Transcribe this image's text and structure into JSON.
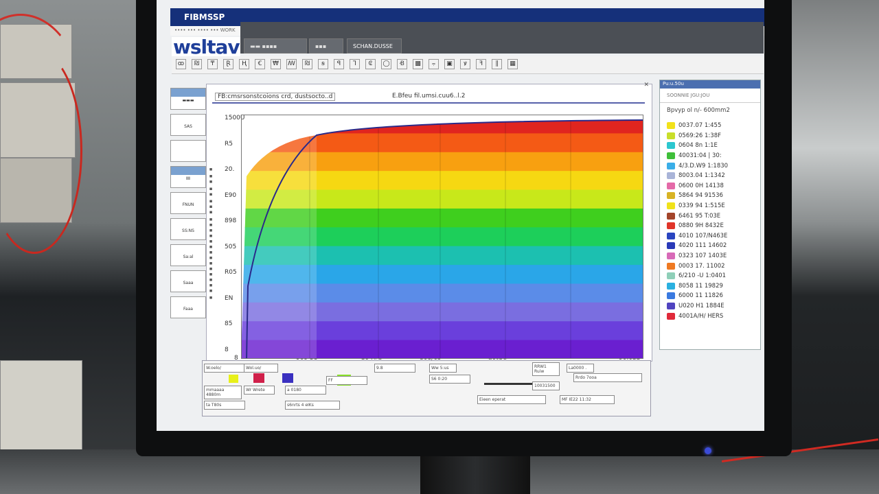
{
  "window": {
    "title": "FIBMSSP",
    "menu": "•••• ••• •••• ••• WORK",
    "logo": "wsltav"
  },
  "header_tabs": [
    "▬▬ ▪▪▪▪",
    "▪▪▪",
    "SCHAN.DUSSE"
  ],
  "toolbar_icons": [
    "ꝏ",
    "₪",
    "₸",
    "Ɽ",
    "Ⱨ",
    "Ꞓ",
    "₩",
    "ꟿ",
    "₪",
    "ꞩ",
    "ꟼ",
    "⅂",
    "₢",
    "◯",
    "Ꞗ",
    "▩",
    "⩦",
    "▣",
    "ꝟ",
    "ꟻ",
    "∥",
    "▦"
  ],
  "left_panel": [
    "▬▬▬",
    "SAS",
    "",
    "ⅡⅡ",
    "FNUN",
    "SS:NS",
    "Sa:al",
    "Saaa",
    "Faaa"
  ],
  "chart": {
    "header_left": "FB:cmsrsonstcoions crd, dustsocto..d",
    "header_right": "E.Bfeu fil.umsi.cuu6..l.2",
    "y_ticks": [
      "1500U",
      "R5",
      "20.",
      "E90",
      "898",
      "505",
      "R05",
      "EN",
      "85",
      "8"
    ],
    "x_ticks": [
      "8",
      "909 58",
      "S94#b",
      "808/65",
      "a0tUe",
      "90.0SS"
    ],
    "band_colors": [
      "#e0251f",
      "#f45a15",
      "#f8a010",
      "#f6d812",
      "#c8e81a",
      "#3fcf1e",
      "#1dcf5a",
      "#1cc0b0",
      "#2aa6e8",
      "#5b8ce8",
      "#7a6ee0",
      "#6a3fdc",
      "#6a1fd0"
    ]
  },
  "right_panel": {
    "title": "Pu:u.50u",
    "subtitle": "SOONNIE  JGU:JOU",
    "heading": "Bpvyp ol n/- 600mm2",
    "legend": [
      {
        "label": "0037.07  1:455",
        "color": "#f2e21a"
      },
      {
        "label": "0569:26  1:38F",
        "color": "#c9de2a"
      },
      {
        "label": "0604 8n  1:1E",
        "color": "#2cc7cf"
      },
      {
        "label": "40031:04 | 30:",
        "color": "#3fbf3a"
      },
      {
        "label": "4/3.D.W9 1:1830",
        "color": "#3aaee8"
      },
      {
        "label": "8003.04 1:1342",
        "color": "#a9b4d8"
      },
      {
        "label": "0600 0H 14138",
        "color": "#e46aa8"
      },
      {
        "label": "5864 94 91536",
        "color": "#d8b324"
      },
      {
        "label": "0339 94 1:515E",
        "color": "#f0e21a"
      },
      {
        "label": "6461 95 T:03E",
        "color": "#a3452a"
      },
      {
        "label": "0880 9H 8432E",
        "color": "#e0352a"
      },
      {
        "label": "4010 107/N463E",
        "color": "#2a45c0"
      },
      {
        "label": "4020 111 14602",
        "color": "#2a3ab8"
      },
      {
        "label": "0323 107 1403E",
        "color": "#d86ab8"
      },
      {
        "label": "0003 17. 11002",
        "color": "#ef7a22"
      },
      {
        "label": "6/210 -U 1:0401",
        "color": "#8fcfb8"
      },
      {
        "label": "8058 11 19829",
        "color": "#2ab0e0"
      },
      {
        "label": "6000 11 11826",
        "color": "#3a7ae0"
      },
      {
        "label": "U020 H1 1884E",
        "color": "#5044c0"
      },
      {
        "label": "4001A/H/ HERS",
        "color": "#e02a3a"
      }
    ]
  },
  "bottom_panel": {
    "labels": [
      "W.oelo/",
      "Wol.uo/",
      "mmaaaa 4880m",
      "Wr Wrete",
      "a 0180",
      "FF",
      "9.8",
      "Ww 5:us",
      "S6 0:20",
      "RRW1 Ruiw",
      "10031500",
      "La0000 .",
      "Rrdo 7ooa",
      "Eieen eperat",
      "ta  T80s",
      "s6nrts 4 eIKs",
      "MF IE22 11:32"
    ]
  }
}
